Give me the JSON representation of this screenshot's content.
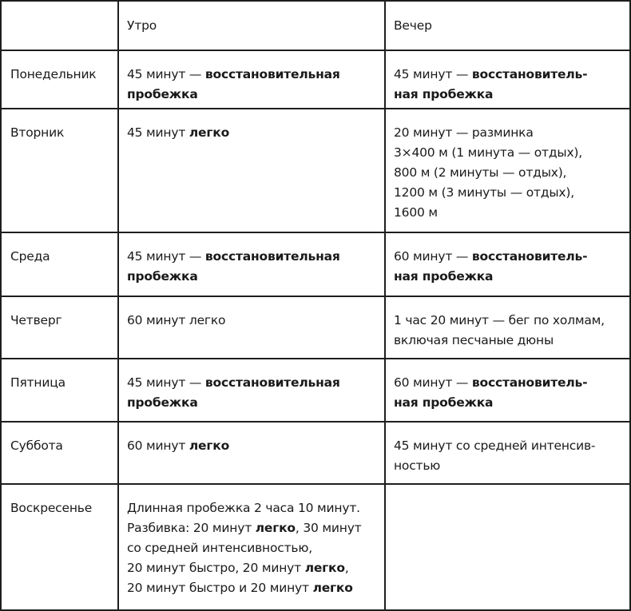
{
  "header": {
    "day": "",
    "morning": "Утро",
    "evening": "Вечер"
  },
  "rows": [
    {
      "day": "Понедельник",
      "morning": [
        [
          {
            "t": "45 минут — "
          },
          {
            "t": "восстановительная",
            "b": true
          }
        ],
        [
          {
            "t": "пробежка",
            "b": true
          }
        ]
      ],
      "evening": [
        [
          {
            "t": "45 минут — "
          },
          {
            "t": "восстановитель-",
            "b": true
          }
        ],
        [
          {
            "t": "ная пробежка",
            "b": true
          }
        ]
      ]
    },
    {
      "day": "Вторник",
      "morning": [
        [
          {
            "t": "45 минут "
          },
          {
            "t": "легко",
            "b": true
          }
        ]
      ],
      "evening": [
        [
          {
            "t": "20 минут — разминка"
          }
        ],
        [
          {
            "t": "3×400 м (1 минута — отдых),"
          }
        ],
        [
          {
            "t": "800 м (2 минуты — отдых),"
          }
        ],
        [
          {
            "t": "1200 м (3 минуты — отдых),"
          }
        ],
        [
          {
            "t": "1600 м"
          }
        ]
      ]
    },
    {
      "day": "Среда",
      "morning": [
        [
          {
            "t": "45 минут — "
          },
          {
            "t": "восстановительная",
            "b": true
          }
        ],
        [
          {
            "t": "пробежка",
            "b": true
          }
        ]
      ],
      "evening": [
        [
          {
            "t": "60 минут — "
          },
          {
            "t": "восстановитель-",
            "b": true
          }
        ],
        [
          {
            "t": "ная пробежка",
            "b": true
          }
        ]
      ]
    },
    {
      "day": "Четверг",
      "morning": [
        [
          {
            "t": "60 минут легко"
          }
        ]
      ],
      "evening": [
        [
          {
            "t": "1 час 20 минут — бег по холмам,"
          }
        ],
        [
          {
            "t": "включая песчаные дюны"
          }
        ]
      ]
    },
    {
      "day": "Пятница",
      "morning": [
        [
          {
            "t": "45 минут — "
          },
          {
            "t": "восстановительная",
            "b": true
          }
        ],
        [
          {
            "t": "пробежка",
            "b": true
          }
        ]
      ],
      "evening": [
        [
          {
            "t": "60 минут — "
          },
          {
            "t": "восстановитель-",
            "b": true
          }
        ],
        [
          {
            "t": "ная пробежка",
            "b": true
          }
        ]
      ]
    },
    {
      "day": "Суббота",
      "morning": [
        [
          {
            "t": "60 минут "
          },
          {
            "t": "легко",
            "b": true
          }
        ]
      ],
      "evening": [
        [
          {
            "t": "45 минут со средней интенсив-"
          }
        ],
        [
          {
            "t": "ностью"
          }
        ]
      ]
    },
    {
      "day": "Воскресенье",
      "morning": [
        [
          {
            "t": "Длинная пробежка 2 часа 10 минут."
          }
        ],
        [
          {
            "t": "Разбивка: 20 минут "
          },
          {
            "t": "легко",
            "b": true
          },
          {
            "t": ", 30 минут"
          }
        ],
        [
          {
            "t": "со средней интенсивностью,"
          }
        ],
        [
          {
            "t": "20 минут быстро, 20 минут "
          },
          {
            "t": "легко",
            "b": true
          },
          {
            "t": ","
          }
        ],
        [
          {
            "t": "20 минут быстро и 20 минут "
          },
          {
            "t": "легко",
            "b": true
          }
        ]
      ],
      "evening": []
    }
  ]
}
